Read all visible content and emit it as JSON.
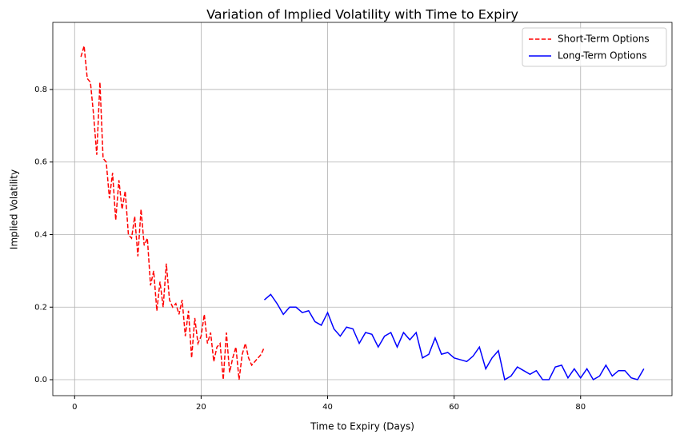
{
  "chart_data": {
    "type": "line",
    "title": "Variation of Implied Volatility with Time to Expiry",
    "xlabel": "Time to Expiry (Days)",
    "ylabel": "Implied Volatility",
    "xlim": [
      -3.45,
      94.45
    ],
    "ylim": [
      -0.044,
      0.985
    ],
    "xticks": [
      0,
      20,
      40,
      60,
      80
    ],
    "yticks": [
      {
        "value": 0,
        "label": "0.0"
      },
      0.2,
      0.4,
      0.6,
      0.8
    ],
    "grid": true,
    "legend": "upper right",
    "series": [
      {
        "name": "Short-Term Options",
        "color": "#ff0000",
        "linestyle": "dashed",
        "x": [
          1,
          1.5,
          2,
          2.5,
          3,
          3.5,
          4,
          4.5,
          5,
          5.5,
          6,
          6.5,
          7,
          7.5,
          8,
          8.5,
          9,
          9.5,
          10,
          10.5,
          11,
          11.5,
          12,
          12.5,
          13,
          13.5,
          14,
          14.5,
          15,
          15.5,
          16,
          16.5,
          17,
          17.5,
          18,
          18.5,
          19,
          19.5,
          20,
          20.5,
          21,
          21.5,
          22,
          22.5,
          23,
          23.5,
          24,
          24.5,
          25,
          25.5,
          26,
          26.5,
          27,
          27.5,
          28,
          28.5,
          29,
          29.5,
          30
        ],
        "values": [
          0.89,
          0.92,
          0.83,
          0.82,
          0.73,
          0.62,
          0.82,
          0.61,
          0.6,
          0.5,
          0.57,
          0.44,
          0.55,
          0.47,
          0.52,
          0.4,
          0.39,
          0.45,
          0.34,
          0.47,
          0.37,
          0.39,
          0.26,
          0.3,
          0.19,
          0.27,
          0.2,
          0.32,
          0.22,
          0.2,
          0.21,
          0.18,
          0.22,
          0.12,
          0.19,
          0.06,
          0.17,
          0.1,
          0.12,
          0.18,
          0.1,
          0.13,
          0.05,
          0.09,
          0.1,
          0.0,
          0.13,
          0.02,
          0.06,
          0.09,
          0.0,
          0.07,
          0.1,
          0.06,
          0.04,
          0.05,
          0.06,
          0.07,
          0.09
        ]
      },
      {
        "name": "Long-Term Options",
        "color": "#0000ff",
        "linestyle": "solid",
        "x": [
          30,
          31,
          32,
          33,
          34,
          35,
          36,
          37,
          38,
          39,
          40,
          41,
          42,
          43,
          44,
          45,
          46,
          47,
          48,
          49,
          50,
          51,
          52,
          53,
          54,
          55,
          56,
          57,
          58,
          59,
          60,
          61,
          62,
          63,
          64,
          65,
          66,
          67,
          68,
          69,
          70,
          71,
          72,
          73,
          74,
          75,
          76,
          77,
          78,
          79,
          80,
          81,
          82,
          83,
          84,
          85,
          86,
          87,
          88,
          89,
          90
        ],
        "values": [
          0.22,
          0.235,
          0.21,
          0.18,
          0.2,
          0.2,
          0.185,
          0.19,
          0.16,
          0.15,
          0.185,
          0.14,
          0.12,
          0.145,
          0.14,
          0.1,
          0.13,
          0.125,
          0.09,
          0.12,
          0.13,
          0.09,
          0.13,
          0.11,
          0.13,
          0.06,
          0.07,
          0.115,
          0.07,
          0.075,
          0.06,
          0.055,
          0.05,
          0.065,
          0.09,
          0.03,
          0.06,
          0.08,
          0.0,
          0.01,
          0.035,
          0.025,
          0.015,
          0.025,
          0.0,
          0.0,
          0.035,
          0.04,
          0.005,
          0.03,
          0.005,
          0.03,
          0.0,
          0.01,
          0.04,
          0.01,
          0.025,
          0.025,
          0.005,
          0.0,
          0.03
        ]
      }
    ]
  }
}
